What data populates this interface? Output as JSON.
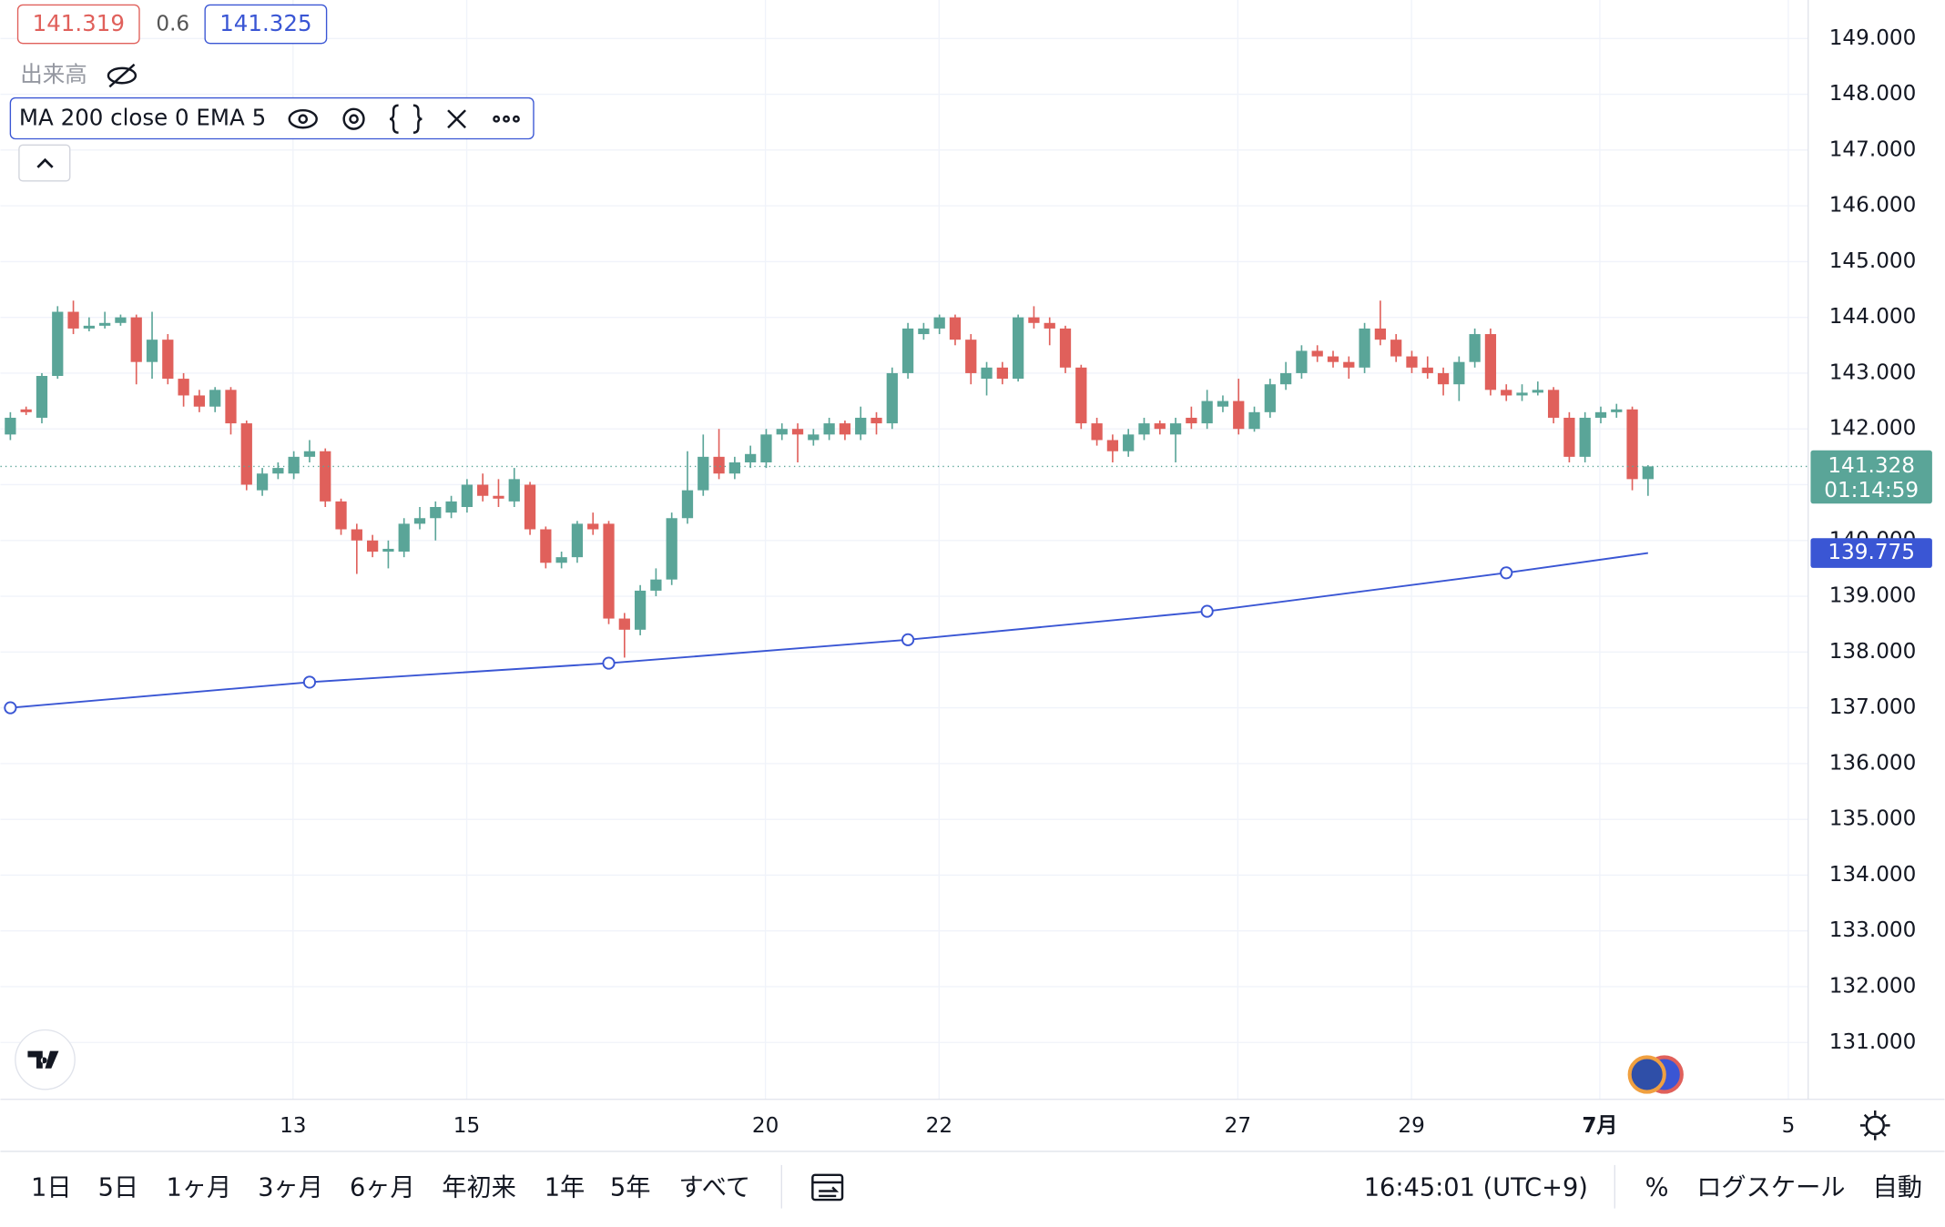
{
  "chart_data": {
    "type": "candlestick",
    "up_color": "#5aa598",
    "down_color": "#e0605b",
    "open": [
      141.9,
      142.35,
      142.2,
      142.95,
      144.1,
      143.8,
      143.85,
      143.9,
      144.0,
      143.2,
      143.6,
      142.9,
      142.6,
      142.4,
      142.7,
      142.1,
      140.9,
      141.2,
      141.2,
      141.5,
      141.6,
      140.7,
      140.2,
      140.0,
      139.8,
      139.8,
      140.3,
      140.4,
      140.5,
      140.6,
      141.0,
      140.8,
      140.7,
      141.0,
      140.2,
      139.6,
      139.7,
      140.3,
      140.3,
      138.6,
      138.4,
      139.1,
      139.3,
      140.4,
      140.9,
      141.5,
      141.2,
      141.4,
      141.4,
      141.9,
      142.0,
      141.8,
      141.9,
      142.1,
      141.9,
      142.2,
      142.1,
      143.0,
      143.7,
      143.8,
      144.0,
      143.6,
      142.9,
      143.1,
      142.9,
      144.0,
      143.9,
      143.8,
      143.1,
      142.1,
      141.8,
      141.6,
      141.9,
      142.1,
      141.9,
      142.2,
      142.1,
      142.4,
      142.5,
      142.0,
      142.3,
      142.8,
      143.0,
      143.4,
      143.3,
      143.2,
      143.1,
      143.8,
      143.6,
      143.3,
      143.1,
      143.0,
      142.8,
      143.2,
      143.7,
      142.7,
      142.6,
      142.65,
      142.7,
      142.2,
      141.5,
      142.2,
      142.3,
      142.35,
      141.1
    ],
    "high": [
      142.3,
      142.4,
      143.0,
      144.2,
      144.3,
      144.0,
      144.1,
      144.05,
      144.05,
      144.1,
      143.7,
      143.0,
      142.7,
      142.75,
      142.75,
      142.15,
      141.3,
      141.4,
      141.6,
      141.8,
      141.65,
      140.75,
      140.3,
      140.1,
      140.0,
      140.4,
      140.6,
      140.7,
      140.8,
      141.1,
      141.2,
      141.1,
      141.3,
      141.05,
      140.25,
      139.8,
      140.35,
      140.5,
      140.35,
      138.7,
      139.2,
      139.5,
      140.5,
      141.6,
      141.9,
      142.0,
      141.5,
      141.7,
      142.0,
      142.1,
      142.1,
      142.0,
      142.2,
      142.15,
      142.4,
      142.3,
      143.1,
      143.9,
      143.9,
      144.05,
      144.05,
      143.7,
      143.2,
      143.2,
      144.05,
      144.2,
      144.0,
      143.85,
      143.15,
      142.2,
      141.9,
      142.0,
      142.2,
      142.15,
      142.2,
      142.4,
      142.7,
      142.6,
      142.9,
      142.4,
      142.9,
      143.2,
      143.5,
      143.5,
      143.4,
      143.3,
      143.9,
      144.3,
      143.7,
      143.4,
      143.3,
      143.1,
      143.3,
      143.8,
      143.8,
      142.8,
      142.8,
      142.85,
      142.75,
      142.3,
      142.3,
      142.4,
      142.45,
      142.4,
      141.35
    ],
    "low": [
      141.8,
      142.25,
      142.1,
      142.9,
      143.7,
      143.75,
      143.8,
      143.85,
      142.8,
      142.9,
      142.8,
      142.4,
      142.3,
      142.3,
      141.9,
      140.9,
      140.8,
      141.1,
      141.1,
      141.4,
      140.6,
      140.1,
      139.4,
      139.7,
      139.5,
      139.7,
      140.2,
      140.0,
      140.4,
      140.5,
      140.7,
      140.6,
      140.6,
      140.1,
      139.5,
      139.5,
      139.6,
      140.1,
      138.5,
      137.9,
      138.3,
      139.0,
      139.2,
      140.3,
      140.8,
      141.1,
      141.1,
      141.3,
      141.3,
      141.8,
      141.4,
      141.7,
      141.8,
      141.8,
      141.8,
      141.9,
      142.0,
      142.9,
      143.6,
      143.7,
      143.5,
      142.8,
      142.6,
      142.8,
      142.85,
      143.8,
      143.5,
      143.0,
      142.0,
      141.7,
      141.4,
      141.5,
      141.8,
      141.9,
      141.4,
      142.0,
      142.0,
      142.3,
      141.9,
      141.95,
      142.2,
      142.7,
      142.9,
      143.2,
      143.1,
      142.9,
      143.0,
      143.5,
      143.2,
      143.0,
      142.9,
      142.6,
      142.5,
      143.1,
      142.6,
      142.5,
      142.5,
      142.6,
      142.1,
      141.4,
      141.4,
      142.1,
      142.2,
      140.9,
      140.8
    ],
    "close": [
      142.2,
      142.3,
      142.95,
      144.1,
      143.8,
      143.85,
      143.9,
      144.0,
      143.2,
      143.6,
      142.9,
      142.6,
      142.4,
      142.7,
      142.1,
      141.0,
      141.2,
      141.3,
      141.5,
      141.6,
      140.7,
      140.2,
      140.0,
      139.8,
      139.85,
      140.3,
      140.4,
      140.6,
      140.7,
      141.0,
      140.8,
      140.75,
      141.1,
      140.2,
      139.6,
      139.7,
      140.3,
      140.2,
      138.6,
      138.4,
      139.1,
      139.3,
      140.4,
      140.9,
      141.5,
      141.2,
      141.4,
      141.55,
      141.9,
      142.0,
      141.9,
      141.9,
      142.1,
      141.9,
      142.2,
      142.1,
      143.0,
      143.8,
      143.8,
      144.0,
      143.6,
      143.0,
      143.1,
      142.9,
      144.0,
      143.9,
      143.8,
      143.1,
      142.1,
      141.8,
      141.6,
      141.9,
      142.1,
      142.0,
      142.1,
      142.1,
      142.5,
      142.5,
      142.0,
      142.3,
      142.8,
      143.0,
      143.4,
      143.3,
      143.2,
      143.1,
      143.8,
      143.6,
      143.3,
      143.1,
      143.0,
      142.8,
      143.2,
      143.7,
      142.7,
      142.6,
      142.65,
      142.7,
      142.2,
      141.5,
      142.2,
      142.3,
      142.35,
      141.1,
      141.328
    ],
    "series": [
      {
        "name": "MA 200 close 0 EMA 5",
        "color": "#3a56d4",
        "x": [
          0,
          19,
          38,
          57,
          76,
          95,
          104
        ],
        "values": [
          137.0,
          137.46,
          137.8,
          138.22,
          138.73,
          139.42,
          139.775
        ]
      }
    ],
    "countdown": "01:14:59",
    "xlim": [
      -0.63,
      114.17
    ],
    "xticks": [
      {
        "value": 17.95,
        "label": "13"
      },
      {
        "value": 28.98,
        "label": "15"
      },
      {
        "value": 47.95,
        "label": "20"
      },
      {
        "value": 58.98,
        "label": "22"
      },
      {
        "value": 77.95,
        "label": "27"
      },
      {
        "value": 88.98,
        "label": "29"
      },
      {
        "value": 100.94,
        "label": "7月"
      },
      {
        "value": 112.91,
        "label": "5"
      }
    ],
    "ylim": [
      129.98,
      149.69
    ],
    "yticks": [
      {
        "value": 131,
        "label": "131.000"
      },
      {
        "value": 132,
        "label": "132.000"
      },
      {
        "value": 133,
        "label": "133.000"
      },
      {
        "value": 134,
        "label": "134.000"
      },
      {
        "value": 135,
        "label": "135.000"
      },
      {
        "value": 136,
        "label": "136.000"
      },
      {
        "value": 137,
        "label": "137.000"
      },
      {
        "value": 138,
        "label": "138.000"
      },
      {
        "value": 139,
        "label": "139.000"
      },
      {
        "value": 140,
        "label": "140.000"
      },
      {
        "value": 141,
        "label": "141.000"
      },
      {
        "value": 142,
        "label": "142.000"
      },
      {
        "value": 143,
        "label": "143.000"
      },
      {
        "value": 144,
        "label": "144.000"
      },
      {
        "value": 145,
        "label": "145.000"
      },
      {
        "value": 146,
        "label": "146.000"
      },
      {
        "value": 147,
        "label": "147.000"
      },
      {
        "value": 148,
        "label": "148.000"
      },
      {
        "value": 149,
        "label": "149.000"
      }
    ],
    "grid": true
  },
  "header": {
    "bid": 141.319,
    "spread": 0.6,
    "ask": 141.325,
    "volume_label": "出来高"
  },
  "toolbar": {
    "ranges": [
      "1日",
      "5日",
      "1ヶ月",
      "3ヶ月",
      "6ヶ月",
      "年初来",
      "1年",
      "5年",
      "すべて"
    ],
    "time": "16:45:01 (UTC+9)",
    "percent": "%",
    "log": "ログスケール",
    "auto": "自動"
  }
}
